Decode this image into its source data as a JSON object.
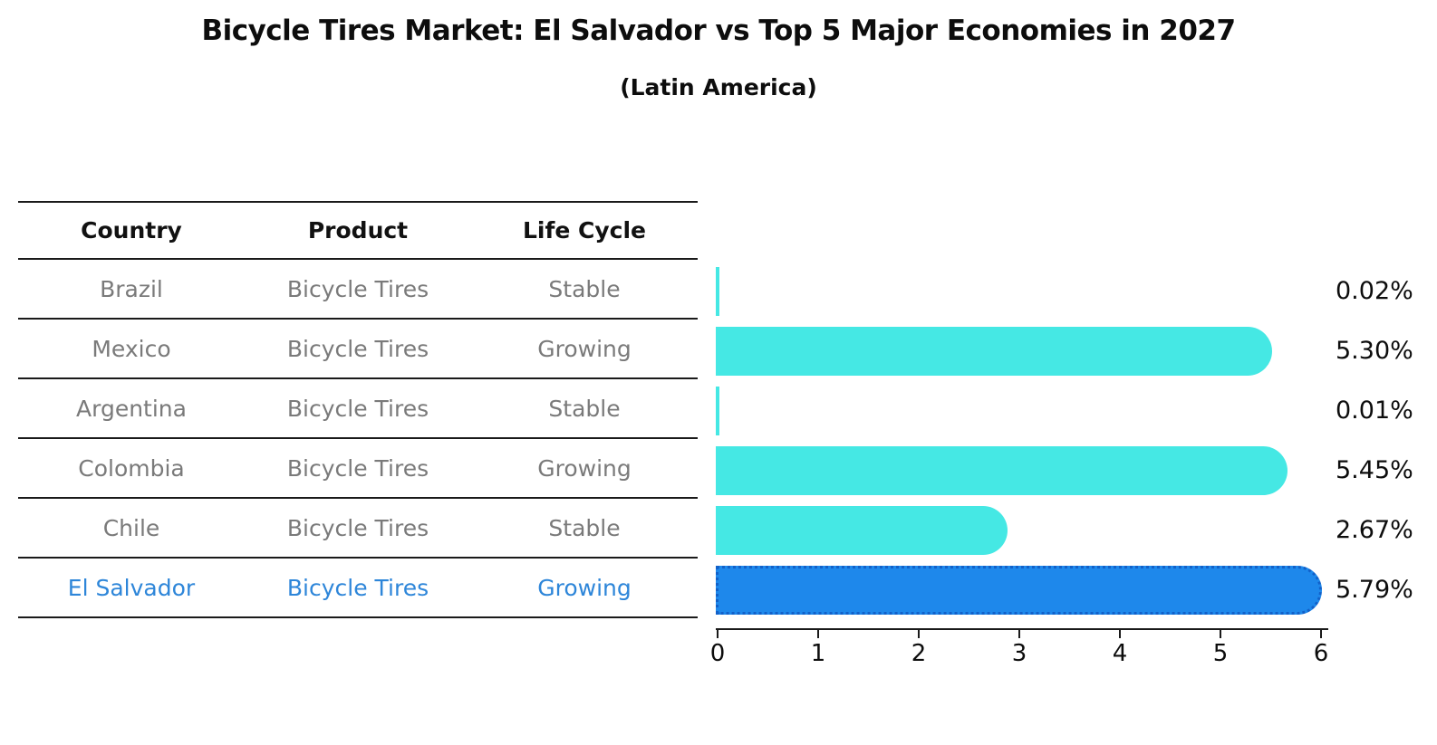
{
  "title": "Bicycle Tires Market: El Salvador vs Top 5 Major Economies in 2027",
  "subtitle": "(Latin America)",
  "table": {
    "headers": [
      "Country",
      "Product",
      "Life Cycle"
    ],
    "rows": [
      {
        "country": "Brazil",
        "product": "Bicycle Tires",
        "life_cycle": "Stable",
        "highlight": false
      },
      {
        "country": "Mexico",
        "product": "Bicycle Tires",
        "life_cycle": "Growing",
        "highlight": false
      },
      {
        "country": "Argentina",
        "product": "Bicycle Tires",
        "life_cycle": "Stable",
        "highlight": false
      },
      {
        "country": "Colombia",
        "product": "Bicycle Tires",
        "life_cycle": "Growing",
        "highlight": false
      },
      {
        "country": "Chile",
        "product": "Bicycle Tires",
        "life_cycle": "Stable",
        "highlight": false
      },
      {
        "country": "El Salvador",
        "product": "Bicycle Tires",
        "life_cycle": "Growing",
        "highlight": true
      }
    ]
  },
  "chart_data": {
    "type": "bar",
    "orientation": "horizontal",
    "title": "Bicycle Tires Market: El Salvador vs Top 5 Major Economies in 2027",
    "subtitle": "(Latin America)",
    "categories": [
      "Brazil",
      "Mexico",
      "Argentina",
      "Colombia",
      "Chile",
      "El Salvador"
    ],
    "values": [
      0.02,
      5.3,
      0.01,
      5.45,
      2.67,
      5.79
    ],
    "value_labels": [
      "0.02%",
      "5.30%",
      "0.01%",
      "5.45%",
      "2.67%",
      "5.79%"
    ],
    "highlight_index": 5,
    "x_ticks": [
      "0",
      "1",
      "2",
      "3",
      "4",
      "5",
      "6"
    ],
    "xlim": [
      0,
      6
    ],
    "grid": false,
    "legend": false,
    "colors": {
      "bar_default": "#45E8E4",
      "bar_highlight": "#1E88EB",
      "bar_highlight_edge": "#1261C9",
      "highlight_text": "#2E86D9",
      "table_text": "#7A7A7A",
      "header_text": "#111111",
      "axis": "#1A1A1A"
    }
  }
}
